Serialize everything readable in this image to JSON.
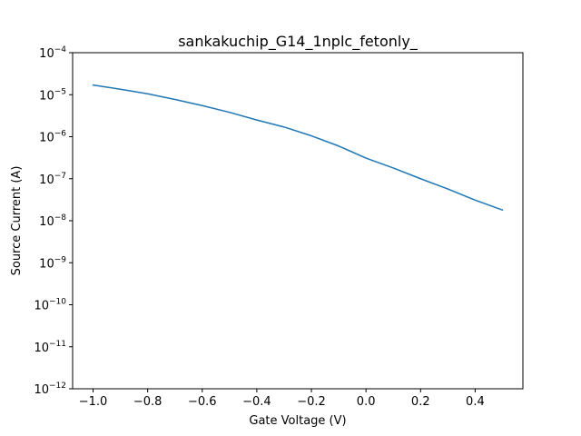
{
  "chart_data": {
    "type": "line",
    "title": "sankakuchip_G14_1nplc_fetonly_",
    "xlabel": "Gate Voltage (V)",
    "ylabel": "Source Current (A)",
    "xlim": [
      -1.075,
      0.575
    ],
    "ylim": [
      1e-12,
      0.0001
    ],
    "yscale": "log",
    "grid": false,
    "line_color": "#1f77b4",
    "x_ticks": [
      {
        "value": -1.0,
        "label": "−1.0"
      },
      {
        "value": -0.8,
        "label": "−0.8"
      },
      {
        "value": -0.6,
        "label": "−0.6"
      },
      {
        "value": -0.4,
        "label": "−0.4"
      },
      {
        "value": -0.2,
        "label": "−0.2"
      },
      {
        "value": 0.0,
        "label": "0.0"
      },
      {
        "value": 0.2,
        "label": "0.2"
      },
      {
        "value": 0.4,
        "label": "0.4"
      }
    ],
    "y_ticks": [
      {
        "exp": -12,
        "base": "10",
        "sup": "−12"
      },
      {
        "exp": -11,
        "base": "10",
        "sup": "−11"
      },
      {
        "exp": -10,
        "base": "10",
        "sup": "−10"
      },
      {
        "exp": -9,
        "base": "10",
        "sup": "−9"
      },
      {
        "exp": -8,
        "base": "10",
        "sup": "−8"
      },
      {
        "exp": -7,
        "base": "10",
        "sup": "−7"
      },
      {
        "exp": -6,
        "base": "10",
        "sup": "−6"
      },
      {
        "exp": -5,
        "base": "10",
        "sup": "−5"
      },
      {
        "exp": -4,
        "base": "10",
        "sup": "−4"
      }
    ],
    "series": [
      {
        "x": [
          -1.0,
          -0.9,
          -0.8,
          -0.7,
          -0.6,
          -0.5,
          -0.4,
          -0.3,
          -0.2,
          -0.1,
          0.0,
          0.1,
          0.2,
          0.3,
          0.4,
          0.5
        ],
        "y": [
          1.7e-05,
          1.35e-05,
          1.05e-05,
          7.7e-06,
          5.5e-06,
          3.8e-06,
          2.5e-06,
          1.7e-06,
          1.05e-06,
          6e-07,
          3.1e-07,
          1.8e-07,
          1e-07,
          5.7e-08,
          3.1e-08,
          1.8e-08
        ]
      }
    ]
  }
}
